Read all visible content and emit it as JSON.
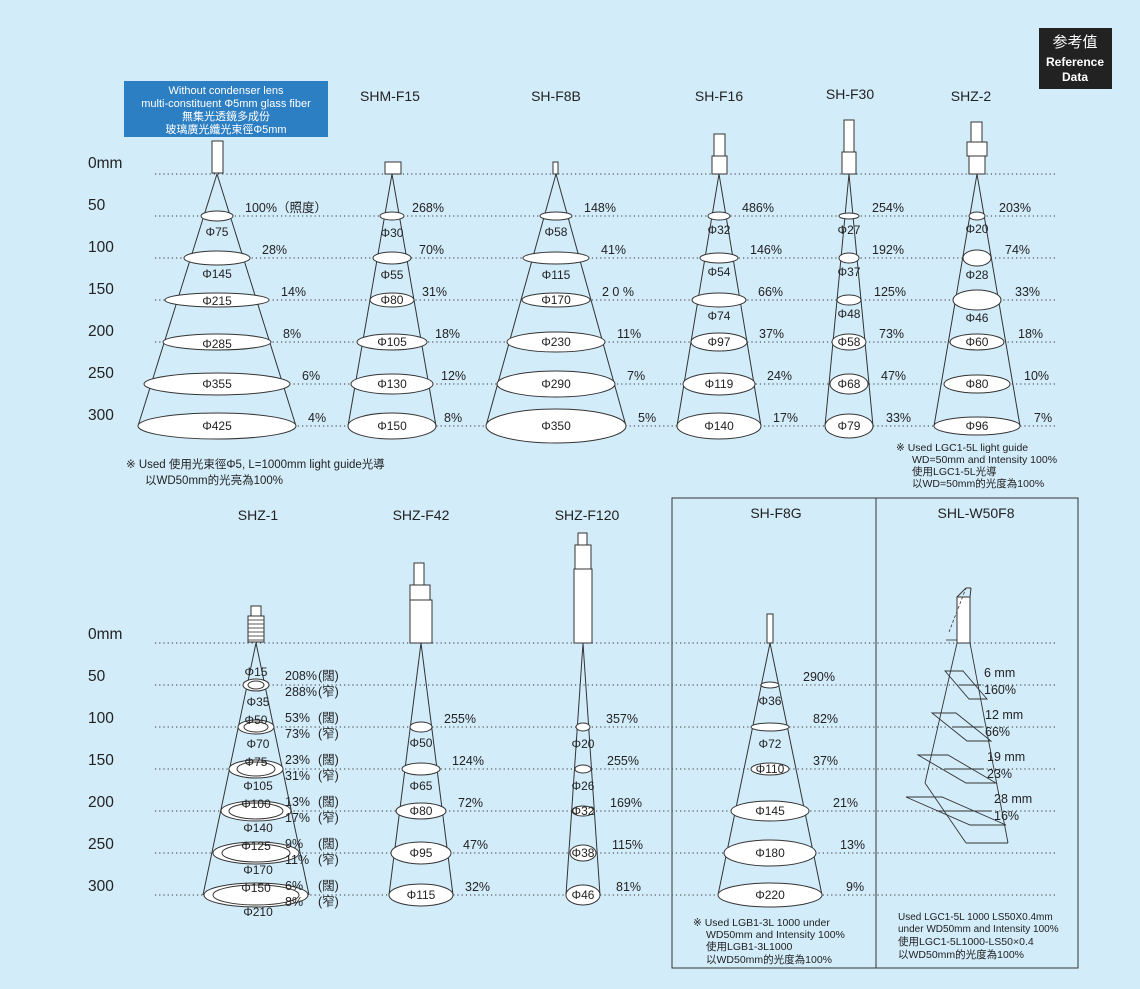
{
  "badge": {
    "line1": "参考值",
    "line2": "Reference",
    "line3": "Data"
  },
  "header_box": {
    "line1": "Without condenser lens",
    "line2": "multi-constituent Φ5mm glass fiber",
    "line3": "無集光透鏡多成份",
    "line4": "玻璃廣光纖光束徑Φ5mm"
  },
  "distance_labels": [
    "0mm",
    "50",
    "100",
    "150",
    "200",
    "250",
    "300"
  ],
  "top_row": [
    {
      "title": "",
      "diameters": [
        "Φ75",
        "Φ145",
        "Φ215",
        "Φ285",
        "Φ355",
        "Φ425"
      ],
      "intensities": [
        "100%（照度）",
        "28%",
        "14%",
        "8%",
        "6%",
        "4%"
      ]
    },
    {
      "title": "SHM-F15",
      "diameters": [
        "Φ30",
        "Φ55",
        "Φ80",
        "Φ105",
        "Φ130",
        "Φ150"
      ],
      "intensities": [
        "268%",
        "70%",
        "31%",
        "18%",
        "12%",
        "8%"
      ]
    },
    {
      "title": "SH-F8B",
      "diameters": [
        "Φ58",
        "Φ115",
        "Φ170",
        "Φ230",
        "Φ290",
        "Φ350"
      ],
      "intensities": [
        "148%",
        "41%",
        "2 0 %",
        "11%",
        "7%",
        "5%"
      ]
    },
    {
      "title": "SH-F16",
      "diameters": [
        "Φ32",
        "Φ54",
        "Φ74",
        "Φ97",
        "Φ119",
        "Φ140"
      ],
      "intensities": [
        "486%",
        "146%",
        "66%",
        "37%",
        "24%",
        "17%"
      ]
    },
    {
      "title": "SH-F30",
      "diameters": [
        "Φ27",
        "Φ37",
        "Φ48",
        "Φ58",
        "Φ68",
        "Φ79"
      ],
      "intensities": [
        "254%",
        "192%",
        "125%",
        "73%",
        "47%",
        "33%"
      ]
    },
    {
      "title": "SHZ-2",
      "diameters": [
        "Φ20",
        "Φ28",
        "Φ46",
        "Φ60",
        "Φ80",
        "Φ96"
      ],
      "intensities": [
        "203%",
        "74%",
        "33%",
        "18%",
        "10%",
        "7%"
      ]
    }
  ],
  "note_top_left": {
    "line1": "※ Used 使用光束徑Φ5, L=1000mm light guide光導",
    "line2": "以WD50mm的光亮為100%"
  },
  "note_top_right": {
    "line1": "※ Used LGC1-5L light guide",
    "line2": "WD=50mm and Intensity 100%",
    "line3": "使用LGC1-5L光導",
    "line4": "以WD=50mm的光度為100%"
  },
  "bottom_row": [
    {
      "title": "SHZ-1",
      "inner": [
        "Φ15",
        "Φ50",
        "Φ75",
        "Φ100",
        "Φ125",
        "Φ150"
      ],
      "outer": [
        "Φ35",
        "Φ70",
        "Φ105",
        "Φ140",
        "Φ170",
        "Φ210"
      ],
      "wide": [
        "208%",
        "53%",
        "23%",
        "13%",
        "9%",
        "6%"
      ],
      "narrow": [
        "288%",
        "73%",
        "31%",
        "17%",
        "11%",
        "8%"
      ],
      "wide_tag": "(闊)",
      "narrow_tag": "(窄)"
    },
    {
      "title": "SHZ-F42",
      "diameters": [
        "Φ50",
        "Φ65",
        "Φ80",
        "Φ95",
        "Φ115"
      ],
      "intensities": [
        "255%",
        "124%",
        "72%",
        "47%",
        "32%"
      ]
    },
    {
      "title": "SHZ-F120",
      "diameters": [
        "Φ20",
        "Φ26",
        "Φ32",
        "Φ38",
        "Φ46"
      ],
      "intensities": [
        "357%",
        "255%",
        "169%",
        "115%",
        "81%"
      ]
    },
    {
      "title": "SH-F8G",
      "diameters": [
        "Φ36",
        "Φ72",
        "Φ110",
        "Φ145",
        "Φ180",
        "Φ220"
      ],
      "intensities": [
        "290%",
        "82%",
        "37%",
        "21%",
        "13%",
        "9%"
      ]
    },
    {
      "title": "SHL-W50F8",
      "widths": [
        "6 mm",
        "12 mm",
        "19 mm",
        "28 mm"
      ],
      "intensities": [
        "160%",
        "66%",
        "23%",
        "16%"
      ]
    }
  ],
  "note_f8g": {
    "line1": "※ Used LGB1-3L 1000 under",
    "line2": "WD50mm and Intensity 100%",
    "line3": "使用LGB1-3L1000",
    "line4": "以WD50mm的光度為100%"
  },
  "note_w50": {
    "line1": "Used LGC1-5L 1000 LS50X0.4mm",
    "line2": "under  WD50mm and Intensity 100%",
    "line3": "使用LGC1-5L1000-LS50×0.4",
    "line4": "以WD50mm的光度為100%"
  },
  "colors": {
    "background": "#d3ecfa",
    "header_box": "#2d7fc3",
    "badge": "#222222",
    "line": "#333333",
    "dotted": "#333333"
  }
}
